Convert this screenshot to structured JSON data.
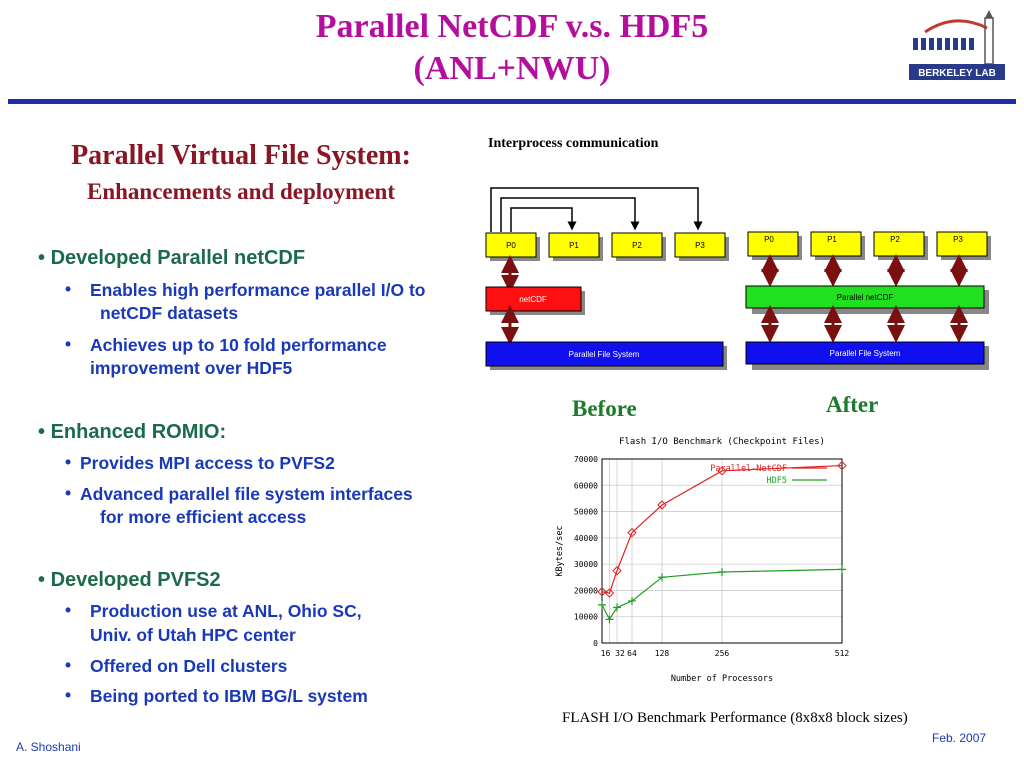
{
  "slide": {
    "title_line1": "Parallel NetCDF v.s. HDF5",
    "title_line2": "(ANL+NWU)",
    "logo_text": "BERKELEY LAB",
    "accent_color": "#b40f9c",
    "rule_color": "#1f2ea8"
  },
  "left": {
    "section_title": "Parallel Virtual File System:",
    "section_subtitle": "Enhancements and deployment",
    "bullets": [
      {
        "text": "Developed Parallel netCDF",
        "subs": [
          "Enables high performance parallel I/O to",
          "netCDF datasets",
          "Achieves up to 10 fold performance",
          "improvement over HDF5"
        ]
      },
      {
        "text": "Enhanced ROMIO:",
        "subs": [
          "Provides MPI access to PVFS2",
          "Advanced parallel file system interfaces",
          "for more efficient access"
        ]
      },
      {
        "text": "Developed PVFS2",
        "subs": [
          "Production use at ANL, Ohio SC,",
          "Univ. of Utah HPC center",
          "Offered on Dell clusters",
          "Being ported to IBM BG/L system"
        ]
      }
    ]
  },
  "diagram": {
    "ipc_label": "Interprocess communication",
    "before": {
      "processes": [
        "P0",
        "P1",
        "P2",
        "P3"
      ],
      "middle_label": "netCDF",
      "fs_label": "Parallel File System",
      "caption": "Before"
    },
    "after": {
      "processes": [
        "P0",
        "P1",
        "P2",
        "P3"
      ],
      "middle_label": "Parallel netCDF",
      "fs_label": "Parallel File System",
      "caption": "After"
    }
  },
  "chart_data": {
    "type": "line",
    "title": "Flash I/O Benchmark (Checkpoint Files)",
    "xlabel": "Number of Processors",
    "ylabel": "KBytes/sec",
    "x_ticks": [
      16,
      32,
      64,
      128,
      256,
      512
    ],
    "y_ticks": [
      0,
      10000,
      20000,
      30000,
      40000,
      50000,
      60000,
      70000
    ],
    "xlim": [
      0,
      512
    ],
    "ylim": [
      0,
      70000
    ],
    "grid": true,
    "legend_position": "top-right",
    "series": [
      {
        "name": "Parallel-NetCDF",
        "color": "#e02020",
        "x": [
          0,
          16,
          32,
          64,
          128,
          256,
          512
        ],
        "y": [
          19500,
          19000,
          27500,
          42000,
          52500,
          65500,
          67500
        ]
      },
      {
        "name": "HDF5",
        "color": "#20a020",
        "x": [
          0,
          16,
          32,
          64,
          128,
          256,
          512
        ],
        "y": [
          14500,
          9000,
          13500,
          16000,
          25000,
          27000,
          28000
        ]
      }
    ],
    "caption": "FLASH I/O Benchmark Performance (8x8x8 block sizes)"
  },
  "footer": {
    "author": "A. Shoshani",
    "date": "Feb. 2007"
  }
}
